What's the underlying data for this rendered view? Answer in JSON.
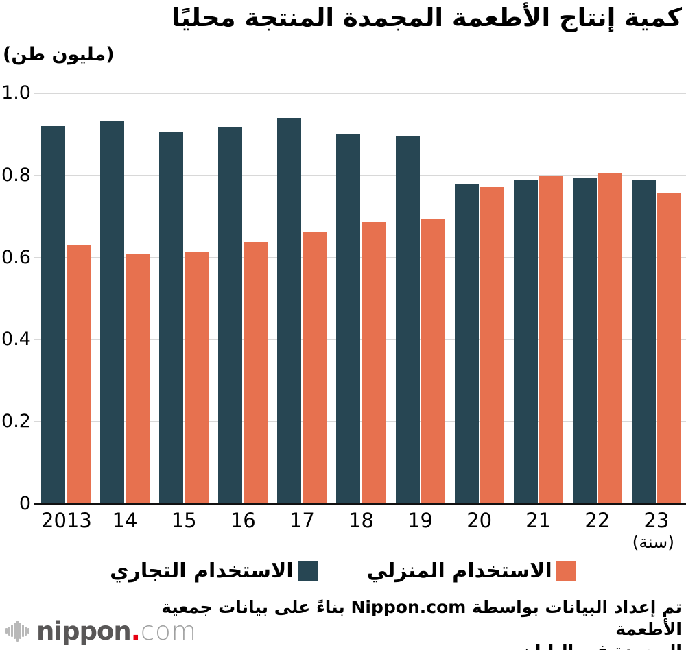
{
  "title": "كمية إنتاج الأطعمة المجمدة المنتجة محليًا",
  "unit_label": "(مليون طن)",
  "x_axis_note": "(سنة)",
  "legend": {
    "commercial": "الاستخدام التجاري",
    "household": "الاستخدام المنزلي"
  },
  "colors": {
    "commercial": "#274653",
    "household": "#E7714F",
    "gridline": "#D8D8D8",
    "axis": "#111111",
    "logo_dark_gray": "#595757",
    "logo_light_gray": "#9FA0A0",
    "logo_red": "#E60012"
  },
  "chart_data": {
    "type": "bar",
    "title": "كمية إنتاج الأطعمة المجمدة المنتجة محليًا",
    "ylabel": "(مليون طن)",
    "xlabel": "(سنة)",
    "ylim": [
      0,
      1.0
    ],
    "yticks": [
      "1.0",
      "0.8",
      "0.6",
      "0.4",
      "0.2",
      "0"
    ],
    "grid": true,
    "legend_position": "bottom",
    "categories": [
      "2013",
      "14",
      "15",
      "16",
      "17",
      "18",
      "19",
      "20",
      "21",
      "22",
      "23"
    ],
    "series": [
      {
        "name": "الاستخدام التجاري",
        "color": "#274653",
        "values": [
          0.92,
          0.933,
          0.905,
          0.919,
          0.94,
          0.9,
          0.895,
          0.78,
          0.789,
          0.795,
          0.79
        ]
      },
      {
        "name": "الاستخدام المنزلي",
        "color": "#E7714F",
        "values": [
          0.631,
          0.609,
          0.615,
          0.637,
          0.661,
          0.687,
          0.693,
          0.772,
          0.799,
          0.806,
          0.757
        ]
      }
    ]
  },
  "source_note": {
    "line1": "تم إعداد البيانات بواسطة Nippon.com بناءً على بيانات جمعية الأطعمة",
    "line2": "المجمدة في اليابان."
  },
  "logo": {
    "name": "nippon",
    "dot": ".",
    "tld": "com"
  }
}
